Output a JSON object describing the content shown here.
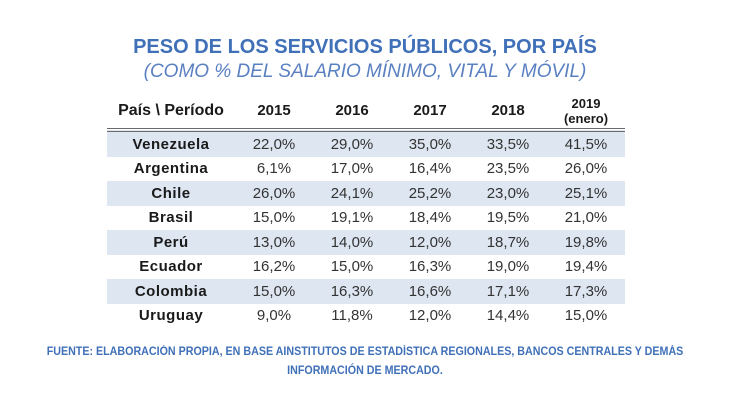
{
  "title": "PESO DE LOS SERVICIOS PÚBLICOS, POR PAÍS",
  "subtitle": "(COMO % DEL SALARIO MÍNIMO, VITAL Y MÓVIL)",
  "table": {
    "header": {
      "country": "País \\ Período",
      "years": [
        "2015",
        "2016",
        "2017",
        "2018"
      ],
      "last_year": "2019",
      "last_year_note": "(enero)"
    },
    "rows": [
      {
        "country": "Venezuela",
        "values": [
          "22,0%",
          "29,0%",
          "35,0%",
          "33,5%",
          "41,5%"
        ]
      },
      {
        "country": "Argentina",
        "values": [
          "6,1%",
          "17,0%",
          "16,4%",
          "23,5%",
          "26,0%"
        ]
      },
      {
        "country": "Chile",
        "values": [
          "26,0%",
          "24,1%",
          "25,2%",
          "23,0%",
          "25,1%"
        ]
      },
      {
        "country": "Brasil",
        "values": [
          "15,0%",
          "19,1%",
          "18,4%",
          "19,5%",
          "21,0%"
        ]
      },
      {
        "country": "Perú",
        "values": [
          "13,0%",
          "14,0%",
          "12,0%",
          "18,7%",
          "19,8%"
        ]
      },
      {
        "country": "Ecuador",
        "values": [
          "16,2%",
          "15,0%",
          "16,3%",
          "19,0%",
          "19,4%"
        ]
      },
      {
        "country": "Colombia",
        "values": [
          "15,0%",
          "16,3%",
          "16,6%",
          "17,1%",
          "17,3%"
        ]
      },
      {
        "country": "Uruguay",
        "values": [
          "9,0%",
          "11,8%",
          "12,0%",
          "14,4%",
          "15,0%"
        ]
      }
    ]
  },
  "footer": {
    "line1": "FUENTE: ELABORACIÓN PROPIA, EN BASE AINSTITUTOS DE ESTADÍSTICA REGIONALES, BANCOS CENTRALES Y DEMÁS",
    "line2": "INFORMACIÓN DE MERCADO."
  },
  "colors": {
    "title": "#3f70b8",
    "subtitle": "#5a80c2",
    "stripe": "#dde6f1",
    "header_rule": "#6b6b6b"
  }
}
